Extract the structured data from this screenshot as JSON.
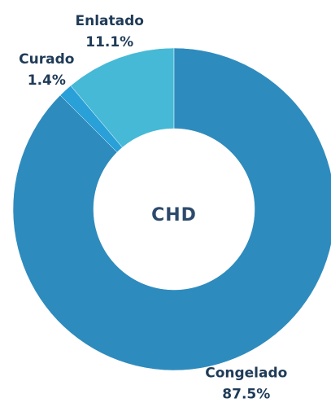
{
  "chart_data": {
    "type": "donut",
    "center_label": "CHD",
    "categories": [
      "Congelado",
      "Curado",
      "Enlatado"
    ],
    "values": [
      87.5,
      1.4,
      11.1
    ],
    "value_labels": [
      "87.5%",
      "1.4%",
      "11.1%"
    ],
    "colors": [
      "#2e8bbd",
      "#2aa0d8",
      "#45b9d6"
    ]
  }
}
